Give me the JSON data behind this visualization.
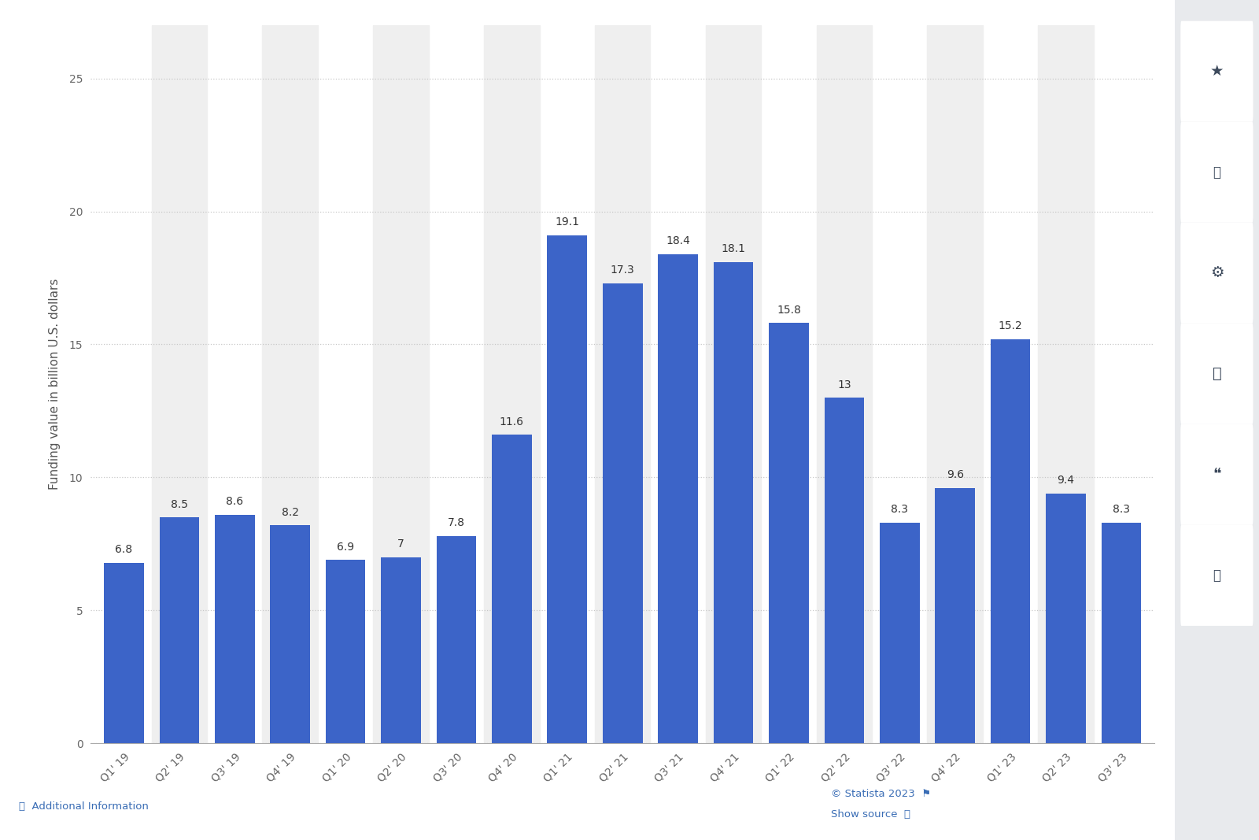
{
  "categories": [
    "Q1’ 19",
    "Q2’ 19",
    "Q3’ 19",
    "Q4’ 19",
    "Q1’ 20",
    "Q2’ 20",
    "Q3’ 20",
    "Q4’ 20",
    "Q1’ 21",
    "Q2’ 21",
    "Q3’ 21",
    "Q4’ 21",
    "Q1’ 22",
    "Q2’ 22",
    "Q3’ 22",
    "Q4’ 22",
    "Q1’ 23",
    "Q2’ 23",
    "Q3’ 23"
  ],
  "xtick_labels": [
    "Q1' 19",
    "Q2' 19",
    "Q3' 19",
    "Q4' 19",
    "Q1' 20",
    "Q2' 20",
    "Q3' 20",
    "Q4' 20",
    "Q1' 21",
    "Q2' 21",
    "Q3' 21",
    "Q4' 21",
    "Q1' 22",
    "Q2' 22",
    "Q3' 22",
    "Q4' 22",
    "Q1' 23",
    "Q2' 23",
    "Q3' 23"
  ],
  "values": [
    6.8,
    8.5,
    8.6,
    8.2,
    6.9,
    7.0,
    7.8,
    11.6,
    19.1,
    17.3,
    18.4,
    18.1,
    15.8,
    13.0,
    8.3,
    9.6,
    15.2,
    9.4,
    8.3
  ],
  "bar_color": "#3C64C8",
  "ylabel": "Funding value in billion U.S. dollars",
  "ylim": [
    0,
    27
  ],
  "yticks": [
    0,
    5,
    10,
    15,
    20,
    25
  ],
  "background_color": "#ffffff",
  "stripe_color": "#efefef",
  "grid_color": "#c8c8c8",
  "label_fontsize": 11,
  "value_label_fontsize": 10,
  "tick_label_fontsize": 10,
  "axis_color": "#555555",
  "tick_color": "#666666",
  "footer_statista": "© Statista 2023",
  "footer_show_source": "Show source",
  "footer_additional": "ⓘ  Additional Information",
  "sidebar_bg": "#e8e8e8",
  "sidebar_btn_bg": "#f5f5f5"
}
